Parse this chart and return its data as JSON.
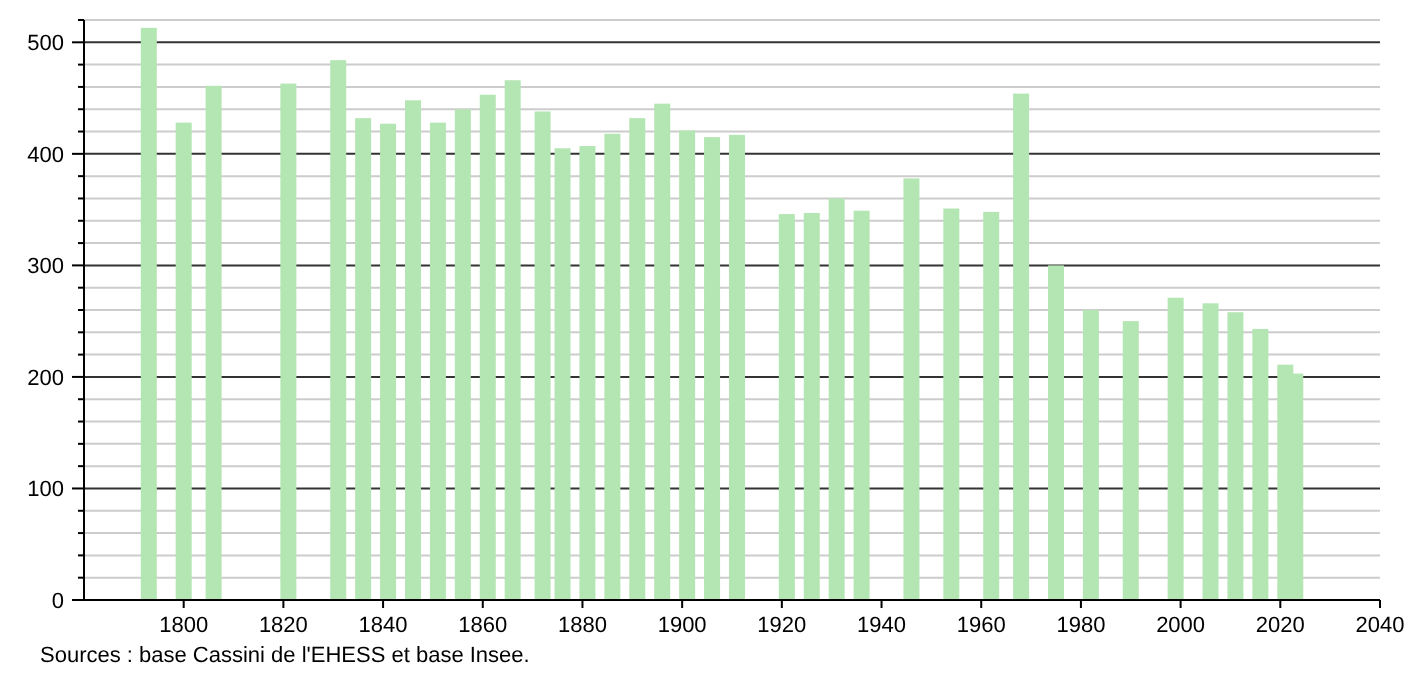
{
  "chart_data": {
    "type": "bar",
    "x": [
      1793,
      1800,
      1806,
      1821,
      1831,
      1836,
      1841,
      1846,
      1851,
      1856,
      1861,
      1866,
      1872,
      1876,
      1881,
      1886,
      1891,
      1896,
      1901,
      1906,
      1911,
      1921,
      1926,
      1931,
      1936,
      1946,
      1954,
      1962,
      1968,
      1975,
      1982,
      1990,
      1999,
      2006,
      2011,
      2016,
      2021,
      2023
    ],
    "values": [
      513,
      428,
      461,
      463,
      484,
      432,
      427,
      448,
      428,
      440,
      453,
      466,
      438,
      405,
      407,
      418,
      432,
      445,
      421,
      415,
      417,
      346,
      347,
      360,
      349,
      378,
      351,
      348,
      454,
      300,
      260,
      250,
      271,
      266,
      258,
      243,
      211,
      203
    ],
    "color": "#b3e6b3",
    "xlim": [
      1780,
      2040
    ],
    "xticks": [
      1800,
      1820,
      1840,
      1860,
      1880,
      1900,
      1920,
      1940,
      1960,
      1980,
      2000,
      2020,
      2040
    ],
    "ylim": [
      0,
      520
    ],
    "yticks": [
      0,
      {
        "value": 20,
        "label": null
      },
      {
        "value": 40,
        "label": null
      },
      {
        "value": 60,
        "label": null
      },
      {
        "value": 80,
        "label": null
      },
      100,
      {
        "value": 120,
        "label": null
      },
      {
        "value": 140,
        "label": null
      },
      {
        "value": 160,
        "label": null
      },
      {
        "value": 180,
        "label": null
      },
      200,
      {
        "value": 220,
        "label": null
      },
      {
        "value": 240,
        "label": null
      },
      {
        "value": 260,
        "label": null
      },
      {
        "value": 280,
        "label": null
      },
      300,
      {
        "value": 320,
        "label": null
      },
      {
        "value": 340,
        "label": null
      },
      {
        "value": 360,
        "label": null
      },
      {
        "value": 380,
        "label": null
      },
      400,
      {
        "value": 420,
        "label": null
      },
      {
        "value": 440,
        "label": null
      },
      {
        "value": 460,
        "label": null
      },
      {
        "value": 480,
        "label": null
      },
      500,
      {
        "value": 520,
        "label": null
      }
    ],
    "grid": true,
    "annotations": [
      "Sources : base Cassini de l'EHESS et base Insee."
    ]
  }
}
